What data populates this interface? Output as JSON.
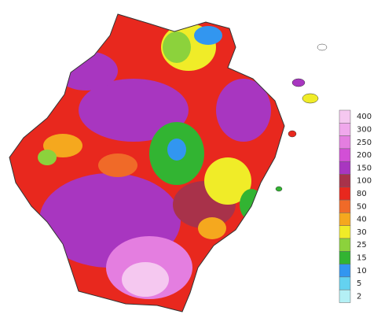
{
  "legend": {
    "items": [
      {
        "label": 400,
        "color": "#f5c8f0"
      },
      {
        "label": 300,
        "color": "#f0a8ec"
      },
      {
        "label": 250,
        "color": "#e47ee0"
      },
      {
        "label": 200,
        "color": "#d24fd6"
      },
      {
        "label": 150,
        "color": "#a836c0"
      },
      {
        "label": 100,
        "color": "#a8324a"
      },
      {
        "label": 80,
        "color": "#e8281e"
      },
      {
        "label": 50,
        "color": "#f06a28"
      },
      {
        "label": 40,
        "color": "#f5a81e"
      },
      {
        "label": 30,
        "color": "#f0ec28"
      },
      {
        "label": 25,
        "color": "#8cd23c"
      },
      {
        "label": 15,
        "color": "#32b432"
      },
      {
        "label": 10,
        "color": "#3296f0"
      },
      {
        "label": 5,
        "color": "#64d2f0"
      },
      {
        "label": 2,
        "color": "#b4f0f5"
      }
    ]
  }
}
